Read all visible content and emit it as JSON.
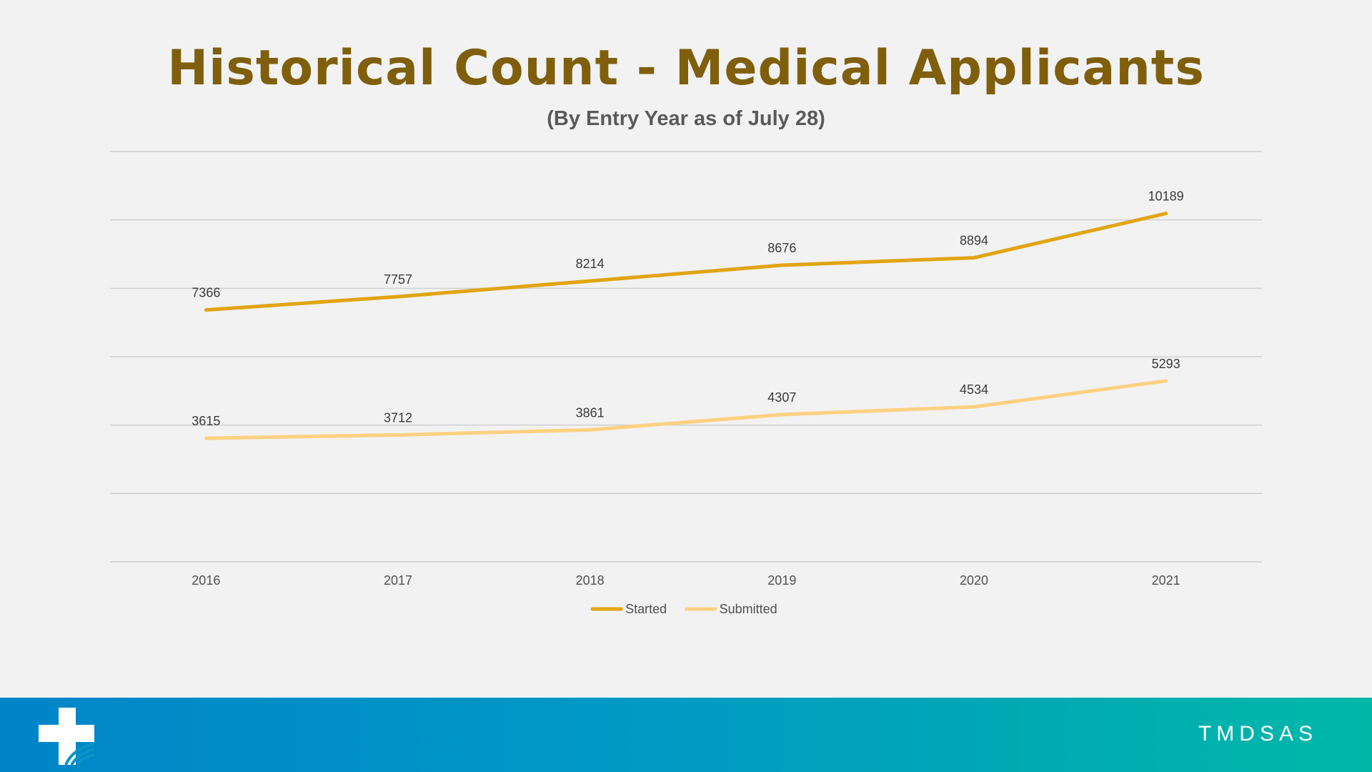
{
  "header": {
    "title": "Historical Count - Medical Applicants",
    "subtitle": "(By Entry Year as of July 28)"
  },
  "footer": {
    "brand": "TMDSAS",
    "logo_icon": "medical-cross-icon"
  },
  "colors": {
    "title": "#7f5f0c",
    "started": "#e0a514",
    "submitted": "#fdd182",
    "footer_start": "#0085c8",
    "footer_end": "#00b8a8"
  },
  "chart_data": {
    "type": "line",
    "title": "Historical Count - Medical Applicants",
    "subtitle": "(By Entry Year as of July 28)",
    "categories": [
      "2016",
      "2017",
      "2018",
      "2019",
      "2020",
      "2021"
    ],
    "series": [
      {
        "name": "Started",
        "values": [
          7366,
          7757,
          8214,
          8676,
          8894,
          10189
        ],
        "color": "#e0a514"
      },
      {
        "name": "Submitted",
        "values": [
          3615,
          3712,
          3861,
          4307,
          4534,
          5293
        ],
        "color": "#fdd182"
      }
    ],
    "ylim": [
      0,
      12000
    ],
    "y_gridlines": [
      0,
      2000,
      4000,
      6000,
      8000,
      10000,
      12000
    ],
    "y_tick_labels_shown": false,
    "grid": true,
    "data_labels": true,
    "legend": "bottom"
  }
}
